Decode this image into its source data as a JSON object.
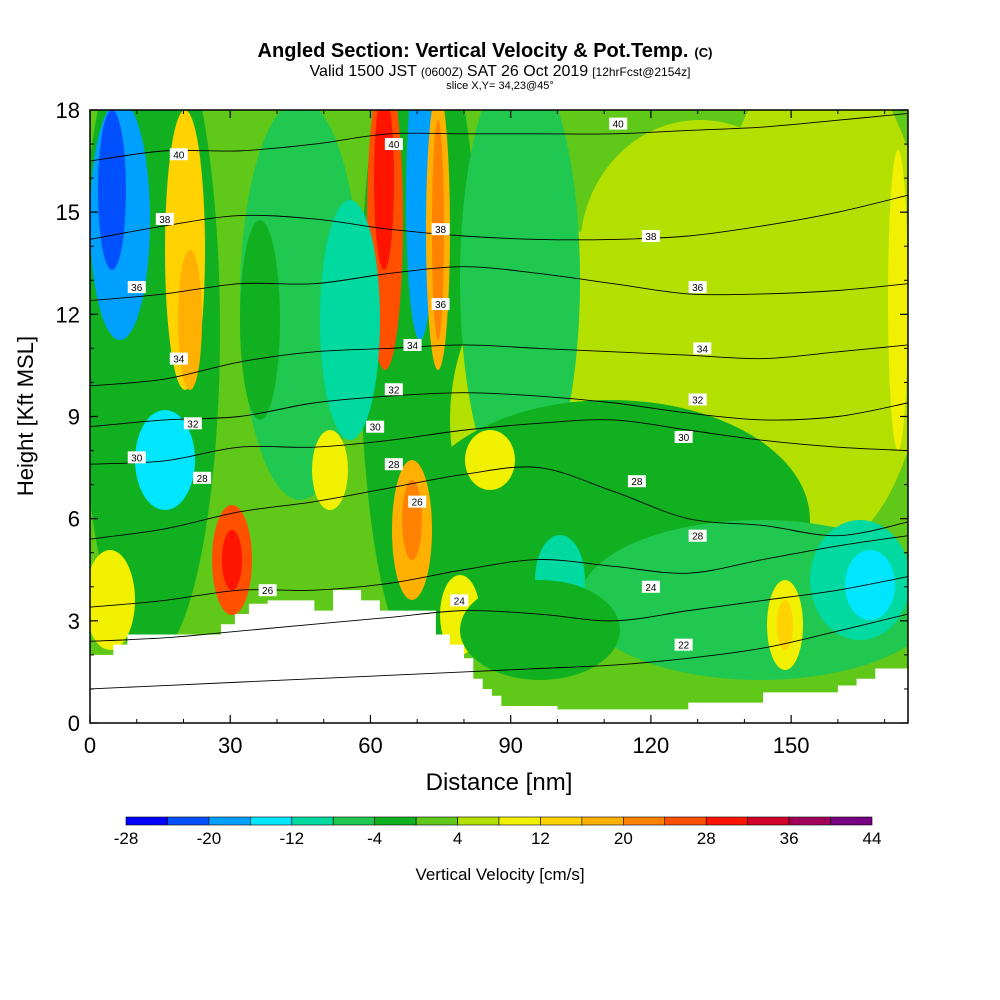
{
  "chart_data": {
    "type": "heatmap",
    "title_main": "Angled Section: Vertical Velocity & Pot.Temp.",
    "title_unit": "(C)",
    "subtitle_a": "Valid 1500 JST",
    "subtitle_b": "(0600Z)",
    "subtitle_c": "SAT 26 Oct 2019",
    "subtitle_d": "[12hrFcst@2154z]",
    "slice_label": "slice X,Y= 34,23@45°",
    "xlabel": "Distance [nm]",
    "ylabel": "Height [Kft MSL]",
    "xlim": [
      0,
      175
    ],
    "ylim": [
      0,
      18
    ],
    "x_ticks": [
      0,
      30,
      60,
      90,
      120,
      150
    ],
    "y_ticks": [
      0,
      3,
      6,
      9,
      12,
      15,
      18
    ],
    "colorbar": {
      "label": "Vertical Velocity [cm/s]",
      "bounds": [
        -28,
        -24,
        -20,
        -16,
        -12,
        -8,
        -4,
        0,
        4,
        8,
        12,
        16,
        20,
        24,
        28,
        32,
        36,
        40,
        44
      ],
      "tick_labels": [
        -28,
        -20,
        -12,
        -4,
        4,
        12,
        20,
        28,
        36,
        44
      ],
      "colors": [
        "#0000ff",
        "#0050ff",
        "#00a0ff",
        "#00e6ff",
        "#00d9a0",
        "#20c850",
        "#10b020",
        "#60c818",
        "#b4e000",
        "#f0f000",
        "#ffd200",
        "#ffb000",
        "#ff8200",
        "#ff5000",
        "#ff1400",
        "#d2002a",
        "#a0005a",
        "#780082"
      ]
    },
    "terrain_kft": {
      "x": [
        0,
        5,
        8,
        11,
        28,
        31,
        34,
        38,
        42,
        48,
        52,
        56,
        58,
        62,
        66,
        70,
        74,
        77,
        80,
        82,
        84,
        86,
        88,
        92,
        96,
        100,
        104,
        108,
        112,
        116,
        120,
        124,
        128,
        132,
        136,
        140,
        144,
        148,
        152,
        156,
        160,
        164,
        168,
        175
      ],
      "y": [
        2.0,
        2.3,
        2.6,
        2.6,
        2.9,
        3.2,
        3.5,
        3.6,
        3.6,
        3.3,
        3.9,
        3.9,
        3.6,
        3.3,
        3.3,
        3.3,
        2.6,
        2.3,
        1.9,
        1.3,
        1.0,
        0.8,
        0.5,
        0.5,
        0.5,
        0.4,
        0.4,
        0.4,
        0.4,
        0.4,
        0.4,
        0.4,
        0.6,
        0.6,
        0.6,
        0.6,
        0.9,
        0.9,
        0.9,
        0.9,
        1.1,
        1.3,
        1.6,
        1.6
      ]
    },
    "pot_temp_contours": [
      {
        "label": "22",
        "label_x": 127,
        "label_y": 2.3,
        "y": [
          1.0,
          1.1,
          1.2,
          1.3,
          1.4,
          1.5,
          1.6,
          1.7,
          1.9,
          2.2,
          2.7,
          3.2
        ]
      },
      {
        "label": "24",
        "label_x": 120,
        "label_y": 4.0,
        "y": [
          2.4,
          2.5,
          2.7,
          2.9,
          3.1,
          3.3,
          3.2,
          3.0,
          3.3,
          3.6,
          3.9,
          4.3
        ]
      },
      {
        "label": "26",
        "label_x": 38,
        "label_y": 3.9,
        "y": [
          3.4,
          3.6,
          3.9,
          3.9,
          4.1,
          4.5,
          4.8,
          4.6,
          4.4,
          4.8,
          5.2,
          5.5
        ]
      },
      {
        "label": "28",
        "label_x": 130,
        "label_y": 5.5,
        "y": [
          5.4,
          5.7,
          6.2,
          6.5,
          6.9,
          7.3,
          7.5,
          6.8,
          6.0,
          5.8,
          5.5,
          5.9
        ]
      },
      {
        "label": "30",
        "label_x": 10,
        "label_y": 7.8,
        "y": [
          7.6,
          7.7,
          8.1,
          8.1,
          8.3,
          8.6,
          8.8,
          8.9,
          8.6,
          8.3,
          8.1,
          8.0
        ]
      },
      {
        "label": "32",
        "label_x": 65,
        "label_y": 9.8,
        "y": [
          8.7,
          8.9,
          9.0,
          9.4,
          9.6,
          9.7,
          9.6,
          9.4,
          9.1,
          8.9,
          9.0,
          9.4
        ]
      },
      {
        "label": "34",
        "label_x": 19,
        "label_y": 10.7,
        "y": [
          9.9,
          10.1,
          10.6,
          10.9,
          11.0,
          11.1,
          11.0,
          10.9,
          10.8,
          10.7,
          10.9,
          11.1
        ]
      },
      {
        "label": "36",
        "label_x": 10,
        "label_y": 12.8,
        "y": [
          12.4,
          12.6,
          12.9,
          12.9,
          13.2,
          13.4,
          13.2,
          12.9,
          12.6,
          12.6,
          12.7,
          12.9
        ]
      },
      {
        "label": "38",
        "label_x": 16,
        "label_y": 14.8,
        "y": [
          14.2,
          14.6,
          14.9,
          14.8,
          14.5,
          14.3,
          14.2,
          14.2,
          14.3,
          14.6,
          15.0,
          15.5
        ]
      },
      {
        "label": "40",
        "label_x": 19,
        "label_y": 16.7,
        "y": [
          16.5,
          16.8,
          16.8,
          17.0,
          17.3,
          17.3,
          17.3,
          17.3,
          17.4,
          17.5,
          17.7,
          17.9
        ]
      }
    ],
    "contour_x": [
      0,
      16,
      32,
      48,
      64,
      80,
      96,
      112,
      128,
      144,
      160,
      175
    ],
    "extra_contour_labels": [
      {
        "label": "24",
        "x": 79,
        "y": 3.6
      },
      {
        "label": "26",
        "x": 70,
        "y": 6.5
      },
      {
        "label": "28",
        "x": 65,
        "y": 7.6
      },
      {
        "label": "28",
        "x": 24,
        "y": 7.2
      },
      {
        "label": "28",
        "x": 117,
        "y": 7.1
      },
      {
        "label": "30",
        "x": 61,
        "y": 8.7
      },
      {
        "label": "30",
        "x": 127,
        "y": 8.4
      },
      {
        "label": "32",
        "x": 22,
        "y": 8.8
      },
      {
        "label": "32",
        "x": 130,
        "y": 9.5
      },
      {
        "label": "34",
        "x": 69,
        "y": 11.1
      },
      {
        "label": "34",
        "x": 131,
        "y": 11.0
      },
      {
        "label": "36",
        "x": 75,
        "y": 12.3
      },
      {
        "label": "36",
        "x": 130,
        "y": 12.8
      },
      {
        "label": "38",
        "x": 75,
        "y": 14.5
      },
      {
        "label": "38",
        "x": 120,
        "y": 14.3
      },
      {
        "label": "40",
        "x": 65,
        "y": 17.0
      },
      {
        "label": "40",
        "x": 113,
        "y": 17.6
      }
    ]
  }
}
